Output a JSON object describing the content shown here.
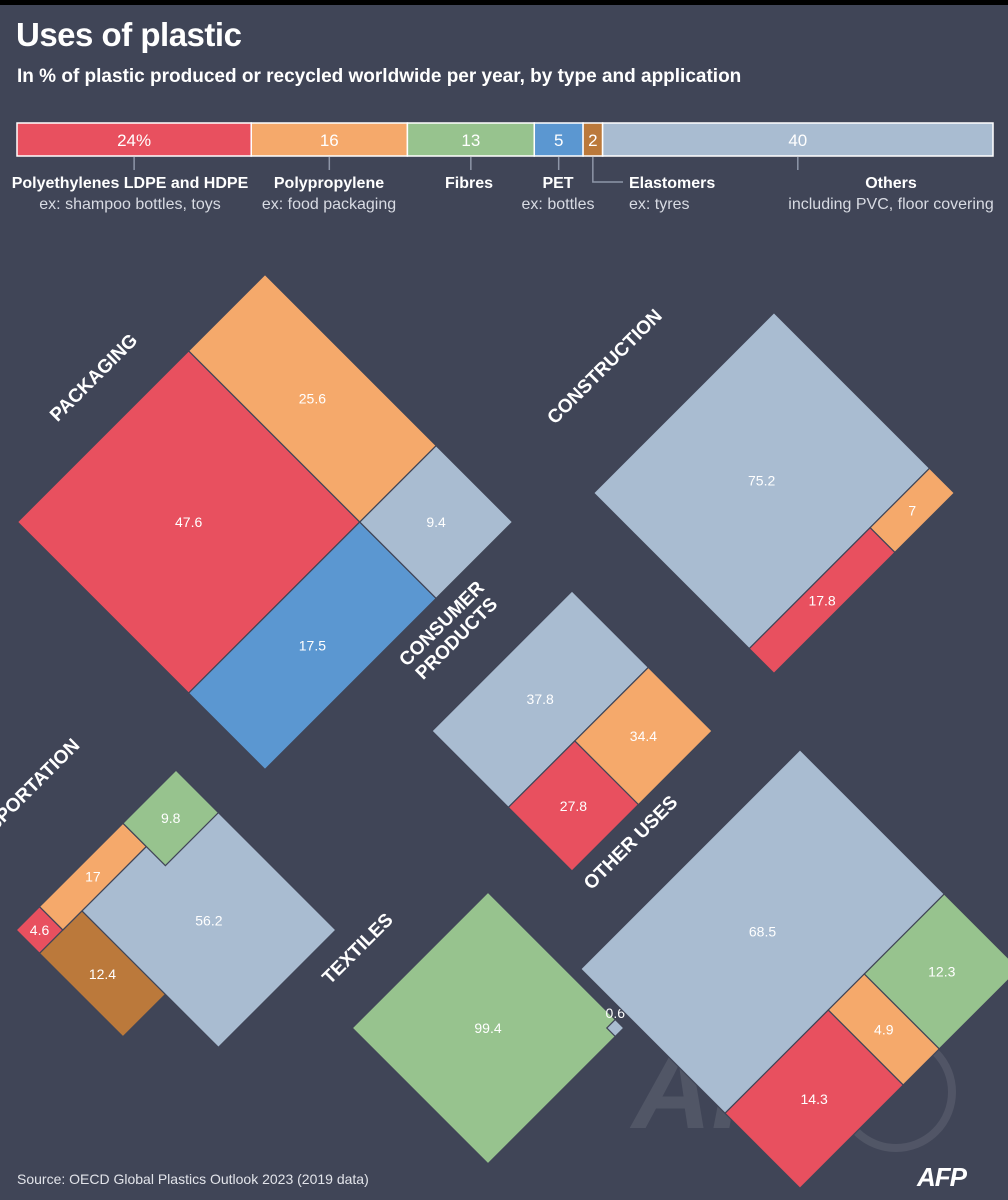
{
  "header": {
    "title": "Uses of plastic",
    "subtitle": "In % of plastic produced or recycled worldwide per year, by type and application"
  },
  "footer": {
    "source": "Source: OECD Global Plastics Outlook 2023 (2019 data)",
    "logo": "AFP",
    "watermark": "AFP"
  },
  "colors": {
    "background": "#404557",
    "polyethylene": "#e8505f",
    "polypropylene": "#f5a96b",
    "fibres": "#97c38e",
    "pet": "#5b97d1",
    "elastomers": "#bb793b",
    "others": "#a9bcd1",
    "tick": "#8e96a8"
  },
  "chart_data": {
    "type": "stacked-bar-and-treemaps",
    "overview": {
      "unit": "%",
      "segments": [
        {
          "key": "polyethylene",
          "value": 24,
          "label": "24%",
          "name": "Polyethylenes LDPE and HDPE",
          "example": "ex: shampoo bottles, toys"
        },
        {
          "key": "polypropylene",
          "value": 16,
          "label": "16",
          "name": "Polypropylene",
          "example": "ex: food packaging"
        },
        {
          "key": "fibres",
          "value": 13,
          "label": "13",
          "name": "Fibres",
          "example": ""
        },
        {
          "key": "pet",
          "value": 5,
          "label": "5",
          "name": "PET",
          "example": "ex: bottles"
        },
        {
          "key": "elastomers",
          "value": 2,
          "label": "2",
          "name": "Elastomers",
          "example": "ex: tyres"
        },
        {
          "key": "others",
          "value": 40,
          "label": "40",
          "name": "Others",
          "example": "including PVC, floor covering"
        }
      ]
    },
    "applications": [
      {
        "name": "PACKAGING",
        "blocks": [
          {
            "key": "polyethylene",
            "value": 47.6,
            "label": "47.6"
          },
          {
            "key": "pet",
            "value": 17.5,
            "label": "17.5"
          },
          {
            "key": "others",
            "value": 9.4,
            "label": "9.4"
          },
          {
            "key": "polypropylene",
            "value": 25.6,
            "label": "25.6"
          }
        ]
      },
      {
        "name": "CONSTRUCTION",
        "blocks": [
          {
            "key": "others",
            "value": 75.2,
            "label": "75.2"
          },
          {
            "key": "polyethylene",
            "value": 17.8,
            "label": "17.8"
          },
          {
            "key": "polypropylene",
            "value": 7,
            "label": "7"
          }
        ]
      },
      {
        "name": "CONSUMER PRODUCTS",
        "name_lines": [
          "CONSUMER",
          "PRODUCTS"
        ],
        "blocks": [
          {
            "key": "others",
            "value": 37.8,
            "label": "37.8"
          },
          {
            "key": "polyethylene",
            "value": 27.8,
            "label": "27.8"
          },
          {
            "key": "polypropylene",
            "value": 34.4,
            "label": "34.4"
          }
        ]
      },
      {
        "name": "TRANSPORTATION",
        "blocks": [
          {
            "key": "polyethylene",
            "value": 4.6,
            "label": "4.6"
          },
          {
            "key": "elastomers",
            "value": 12.4,
            "label": "12.4"
          },
          {
            "key": "others",
            "value": 56.2,
            "label": "56.2"
          },
          {
            "key": "polypropylene",
            "value": 17,
            "label": "17"
          },
          {
            "key": "fibres",
            "value": 9.8,
            "label": "9.8"
          }
        ]
      },
      {
        "name": "TEXTILES",
        "blocks": [
          {
            "key": "fibres",
            "value": 99.4,
            "label": "99.4"
          },
          {
            "key": "others",
            "value": 0.6,
            "label": "0.6"
          }
        ]
      },
      {
        "name": "OTHER USES",
        "blocks": [
          {
            "key": "others",
            "value": 68.5,
            "label": "68.5"
          },
          {
            "key": "polyethylene",
            "value": 14.3,
            "label": "14.3"
          },
          {
            "key": "polypropylene",
            "value": 4.9,
            "label": "4.9"
          },
          {
            "key": "fibres",
            "value": 12.3,
            "label": "12.3"
          }
        ]
      }
    ]
  }
}
